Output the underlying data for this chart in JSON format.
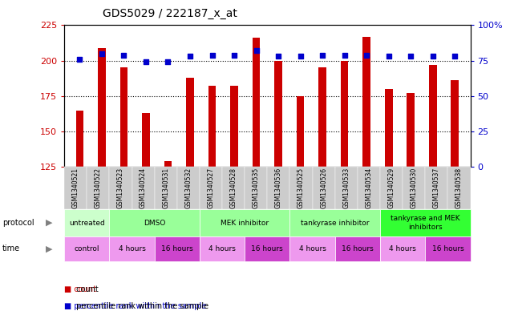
{
  "title": "GDS5029 / 222187_x_at",
  "samples": [
    "GSM1340521",
    "GSM1340522",
    "GSM1340523",
    "GSM1340524",
    "GSM1340531",
    "GSM1340532",
    "GSM1340527",
    "GSM1340528",
    "GSM1340535",
    "GSM1340536",
    "GSM1340525",
    "GSM1340526",
    "GSM1340533",
    "GSM1340534",
    "GSM1340529",
    "GSM1340530",
    "GSM1340537",
    "GSM1340538"
  ],
  "counts": [
    165,
    209,
    195,
    163,
    129,
    188,
    182,
    182,
    216,
    200,
    175,
    195,
    200,
    217,
    180,
    177,
    197,
    186
  ],
  "percentiles": [
    76,
    80,
    79,
    74,
    74,
    78,
    79,
    79,
    82,
    78,
    78,
    79,
    79,
    79,
    78,
    78,
    78,
    78
  ],
  "ylim_left": [
    125,
    225
  ],
  "ylim_right": [
    0,
    100
  ],
  "yticks_left": [
    125,
    150,
    175,
    200,
    225
  ],
  "yticks_right": [
    0,
    25,
    50,
    75,
    100
  ],
  "bar_color": "#cc0000",
  "dot_color": "#0000cc",
  "protocol_groups": [
    {
      "label": "untreated",
      "start": 0,
      "end": 2,
      "color": "#ccffcc"
    },
    {
      "label": "DMSO",
      "start": 2,
      "end": 6,
      "color": "#99ff99"
    },
    {
      "label": "MEK inhibitor",
      "start": 6,
      "end": 10,
      "color": "#99ff99"
    },
    {
      "label": "tankyrase inhibitor",
      "start": 10,
      "end": 14,
      "color": "#99ff99"
    },
    {
      "label": "tankyrase and MEK\ninhibitors",
      "start": 14,
      "end": 18,
      "color": "#33ff33"
    }
  ],
  "time_groups": [
    {
      "label": "control",
      "start": 0,
      "end": 2,
      "color": "#ee99ee"
    },
    {
      "label": "4 hours",
      "start": 2,
      "end": 4,
      "color": "#ee99ee"
    },
    {
      "label": "16 hours",
      "start": 4,
      "end": 6,
      "color": "#cc44cc"
    },
    {
      "label": "4 hours",
      "start": 6,
      "end": 8,
      "color": "#ee99ee"
    },
    {
      "label": "16 hours",
      "start": 8,
      "end": 10,
      "color": "#cc44cc"
    },
    {
      "label": "4 hours",
      "start": 10,
      "end": 12,
      "color": "#ee99ee"
    },
    {
      "label": "16 hours",
      "start": 12,
      "end": 14,
      "color": "#cc44cc"
    },
    {
      "label": "4 hours",
      "start": 14,
      "end": 16,
      "color": "#ee99ee"
    },
    {
      "label": "16 hours",
      "start": 16,
      "end": 18,
      "color": "#cc44cc"
    }
  ]
}
